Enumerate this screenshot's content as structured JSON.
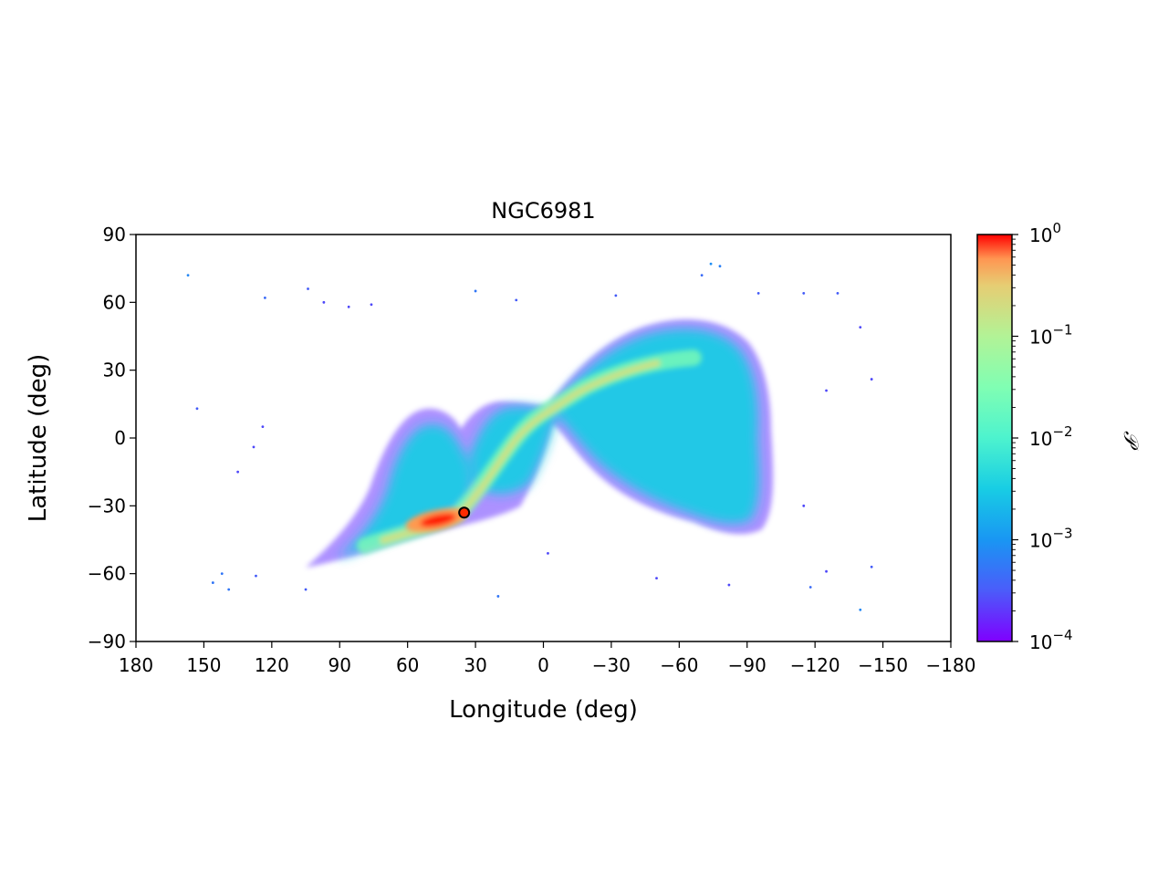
{
  "chart_data": {
    "type": "scatter",
    "title": "NGC6981",
    "xlabel": "Longitude (deg)",
    "ylabel": "Latitude (deg)",
    "xlim": [
      180,
      -180
    ],
    "ylim": [
      -90,
      90
    ],
    "x_ticks": [
      180,
      150,
      120,
      90,
      60,
      30,
      0,
      -30,
      -60,
      -90,
      -120,
      -150,
      -180
    ],
    "x_tick_labels": [
      "180",
      "150",
      "120",
      "90",
      "60",
      "30",
      "0",
      "−30",
      "−60",
      "−90",
      "−120",
      "−150",
      "−180"
    ],
    "y_ticks": [
      -90,
      -60,
      -30,
      0,
      30,
      60,
      90
    ],
    "y_tick_labels": [
      "−90",
      "−60",
      "−30",
      "0",
      "30",
      "60",
      "90"
    ],
    "grid": false,
    "colorbar": {
      "label": "𝒫",
      "scale": "log",
      "range": [
        0.0001,
        1
      ],
      "colormap": "rainbow",
      "ticks": [
        {
          "value": 1,
          "base": "10",
          "exp": "0"
        },
        {
          "value": 0.1,
          "base": "10",
          "exp": "−1"
        },
        {
          "value": 0.01,
          "base": "10",
          "exp": "−2"
        },
        {
          "value": 0.001,
          "base": "10",
          "exp": "−3"
        },
        {
          "value": 0.0001,
          "base": "10",
          "exp": "−4"
        }
      ]
    },
    "cluster_marker": {
      "lon": 35,
      "lat": -33
    },
    "density_components": [
      {
        "name": "main-stream-ridge",
        "path_lonlat": [
          [
            78,
            -45
          ],
          [
            60,
            -42
          ],
          [
            45,
            -37
          ],
          [
            35,
            -33
          ],
          [
            25,
            -20
          ],
          [
            15,
            -5
          ],
          [
            5,
            10
          ],
          [
            -10,
            20
          ],
          [
            -30,
            30
          ],
          [
            -55,
            36
          ]
        ],
        "peak_density": 1.0
      },
      {
        "name": "eastern-blob",
        "center": [
          48,
          -15
        ],
        "spread": [
          16,
          18
        ],
        "peak_density": 0.004
      },
      {
        "name": "western-lobe",
        "center": [
          -58,
          10
        ],
        "spread": [
          30,
          28
        ],
        "peak_density": 0.003
      },
      {
        "name": "bridge-region",
        "center": [
          12,
          5
        ],
        "spread": [
          12,
          10
        ],
        "peak_density": 0.004
      }
    ],
    "scatter_points": [
      {
        "lon": 157,
        "lat": 72,
        "p": 0.0008
      },
      {
        "lon": 153,
        "lat": 13,
        "p": 0.0004
      },
      {
        "lon": 123,
        "lat": 62,
        "p": 0.0005
      },
      {
        "lon": 124,
        "lat": 5,
        "p": 0.0003
      },
      {
        "lon": 104,
        "lat": 66,
        "p": 0.0004
      },
      {
        "lon": 97,
        "lat": 60,
        "p": 0.0003
      },
      {
        "lon": 86,
        "lat": 58,
        "p": 0.0003
      },
      {
        "lon": 76,
        "lat": 59,
        "p": 0.0003
      },
      {
        "lon": 30,
        "lat": 65,
        "p": 0.0006
      },
      {
        "lon": 12,
        "lat": 61,
        "p": 0.0004
      },
      {
        "lon": -32,
        "lat": 63,
        "p": 0.0004
      },
      {
        "lon": -70,
        "lat": 72,
        "p": 0.0005
      },
      {
        "lon": -74,
        "lat": 77,
        "p": 0.0009
      },
      {
        "lon": -78,
        "lat": 76,
        "p": 0.0007
      },
      {
        "lon": -95,
        "lat": 64,
        "p": 0.0004
      },
      {
        "lon": -115,
        "lat": 64,
        "p": 0.0004
      },
      {
        "lon": -130,
        "lat": 64,
        "p": 0.0004
      },
      {
        "lon": -140,
        "lat": 49,
        "p": 0.0003
      },
      {
        "lon": -145,
        "lat": 26,
        "p": 0.0003
      },
      {
        "lon": -125,
        "lat": 21,
        "p": 0.0003
      },
      {
        "lon": 135,
        "lat": -15,
        "p": 0.0003
      },
      {
        "lon": 128,
        "lat": -4,
        "p": 0.0003
      },
      {
        "lon": 142,
        "lat": -60,
        "p": 0.0006
      },
      {
        "lon": 139,
        "lat": -67,
        "p": 0.0006
      },
      {
        "lon": 146,
        "lat": -64,
        "p": 0.0006
      },
      {
        "lon": 127,
        "lat": -61,
        "p": 0.0004
      },
      {
        "lon": 105,
        "lat": -67,
        "p": 0.0004
      },
      {
        "lon": 20,
        "lat": -70,
        "p": 0.0006
      },
      {
        "lon": -2,
        "lat": -51,
        "p": 0.0003
      },
      {
        "lon": -50,
        "lat": -62,
        "p": 0.0003
      },
      {
        "lon": -82,
        "lat": -65,
        "p": 0.0003
      },
      {
        "lon": -118,
        "lat": -66,
        "p": 0.0005
      },
      {
        "lon": -125,
        "lat": -59,
        "p": 0.0003
      },
      {
        "lon": -140,
        "lat": -76,
        "p": 0.0008
      },
      {
        "lon": -145,
        "lat": -57,
        "p": 0.0004
      },
      {
        "lon": -115,
        "lat": -30,
        "p": 0.0003
      }
    ]
  }
}
